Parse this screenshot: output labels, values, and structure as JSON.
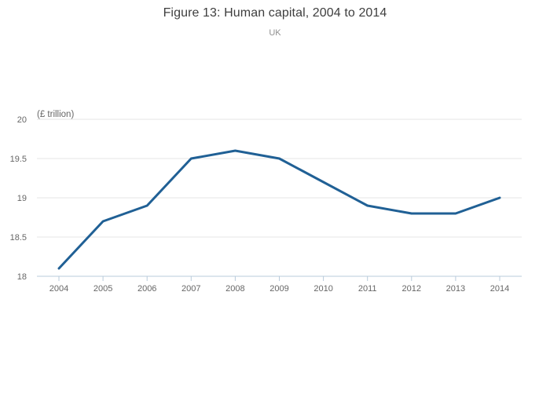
{
  "chart": {
    "title": "Figure 13: Human capital, 2004 to 2014",
    "subtitle": "UK",
    "unit_label": "(£ trillion)"
  },
  "chart_data": {
    "type": "line",
    "title": "Figure 13: Human capital, 2004 to 2014",
    "subtitle": "UK",
    "xlabel": "",
    "ylabel": "(£ trillion)",
    "categories": [
      "2004",
      "2005",
      "2006",
      "2007",
      "2008",
      "2009",
      "2010",
      "2011",
      "2012",
      "2013",
      "2014"
    ],
    "series": [
      {
        "name": "Human capital",
        "values": [
          18.1,
          18.7,
          18.9,
          19.5,
          19.6,
          19.5,
          19.2,
          18.9,
          18.8,
          18.8,
          19.0
        ]
      }
    ],
    "ylim": [
      18,
      20
    ],
    "yticks": [
      18,
      18.5,
      19,
      19.5,
      20
    ],
    "grid": true,
    "legend_position": "none",
    "line_color": "#206095",
    "gridline_color": "#e6e6e6",
    "axis_line_color": "#b9cbdb",
    "tick_label_color": "#666666",
    "title_color": "#3e3e3e",
    "subtitle_color": "#8f8f8f"
  }
}
